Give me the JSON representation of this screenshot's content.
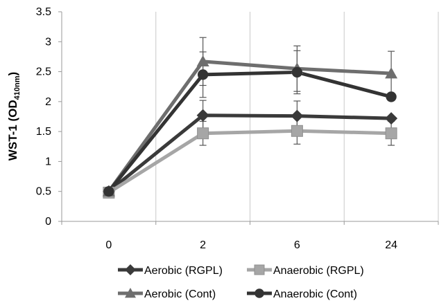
{
  "chart_data": {
    "type": "line",
    "categories": [
      "0",
      "2",
      "6",
      "24"
    ],
    "ylabel_main": "WST-1 (OD",
    "ylabel_sub": "410nm",
    "ylabel_end": ")",
    "ylim": [
      0,
      3.5
    ],
    "yticks": [
      "0",
      "0.5",
      "1",
      "1.5",
      "2",
      "2.5",
      "3",
      "3.5"
    ],
    "grid": "vertical",
    "legend_position": "bottom",
    "series": [
      {
        "name": "Aerobic (RGPL)",
        "marker": "diamond",
        "color": "#3a3a3a",
        "values": [
          0.5,
          1.77,
          1.76,
          1.72
        ],
        "error": [
          0,
          0.25,
          0.25,
          0
        ]
      },
      {
        "name": "Anaerobic (RGPL)",
        "marker": "square",
        "color": "#a6a6a6",
        "values": [
          0.48,
          1.47,
          1.51,
          1.47
        ],
        "error": [
          0,
          0.2,
          0.22,
          0.2
        ]
      },
      {
        "name": "Aerobic (Cont)",
        "marker": "triangle",
        "color": "#6e6e6e",
        "values": [
          0.5,
          2.67,
          2.55,
          2.47
        ],
        "error": [
          0,
          0.4,
          0.38,
          0.37
        ]
      },
      {
        "name": "Anaerobic (Cont)",
        "marker": "circle",
        "color": "#333333",
        "values": [
          0.5,
          2.45,
          2.49,
          2.08
        ],
        "error": [
          0,
          0.38,
          0.36,
          0
        ]
      }
    ]
  }
}
